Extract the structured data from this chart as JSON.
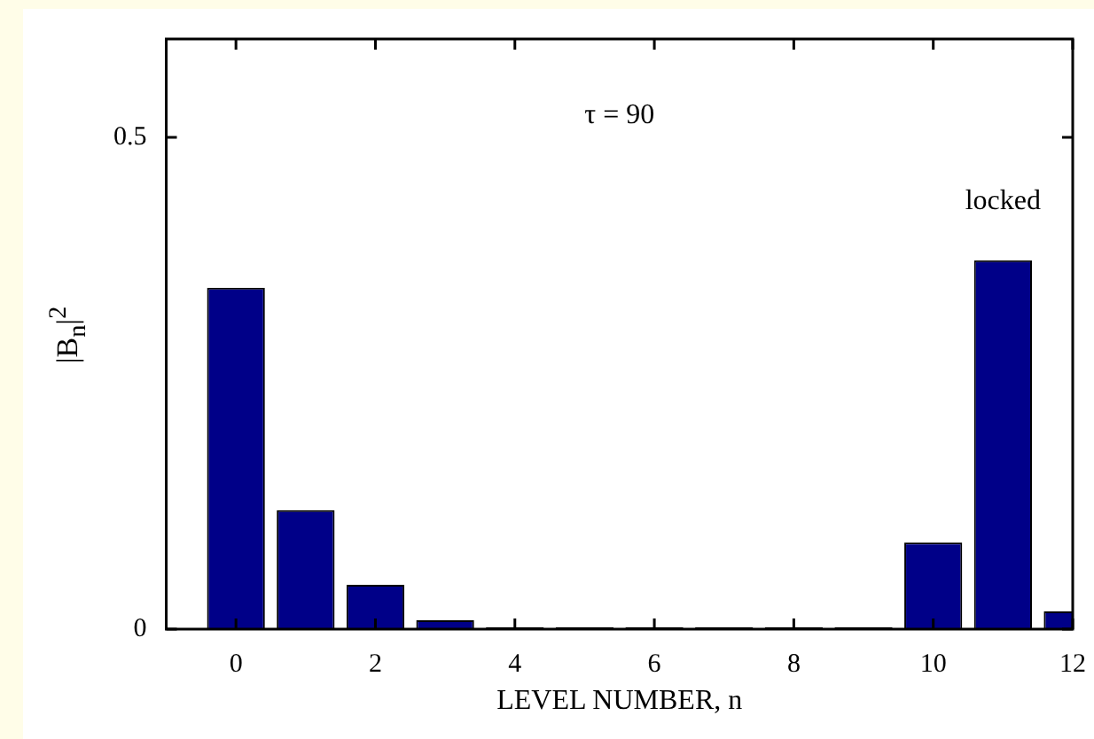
{
  "chart_data": {
    "type": "bar",
    "ylabel": "|B$_{n}$|$^{2}$",
    "xlabel": "LEVEL NUMBER, n",
    "x": [
      0,
      1,
      2,
      3,
      4,
      5,
      6,
      7,
      8,
      9,
      10,
      11,
      12
    ],
    "values": [
      0.347,
      0.121,
      0.045,
      0.009,
      0.002,
      0.002,
      0.002,
      0.002,
      0.002,
      0.002,
      0.088,
      0.375,
      0.018
    ],
    "color": "#000088",
    "xlim": [
      -1,
      12
    ],
    "xticks": [
      0,
      2,
      4,
      6,
      8,
      10,
      12
    ],
    "ylim": [
      0,
      0.6
    ],
    "yticks": [
      0,
      0.5
    ],
    "grid": false,
    "annotations": [
      "τ = 90",
      "locked"
    ]
  }
}
